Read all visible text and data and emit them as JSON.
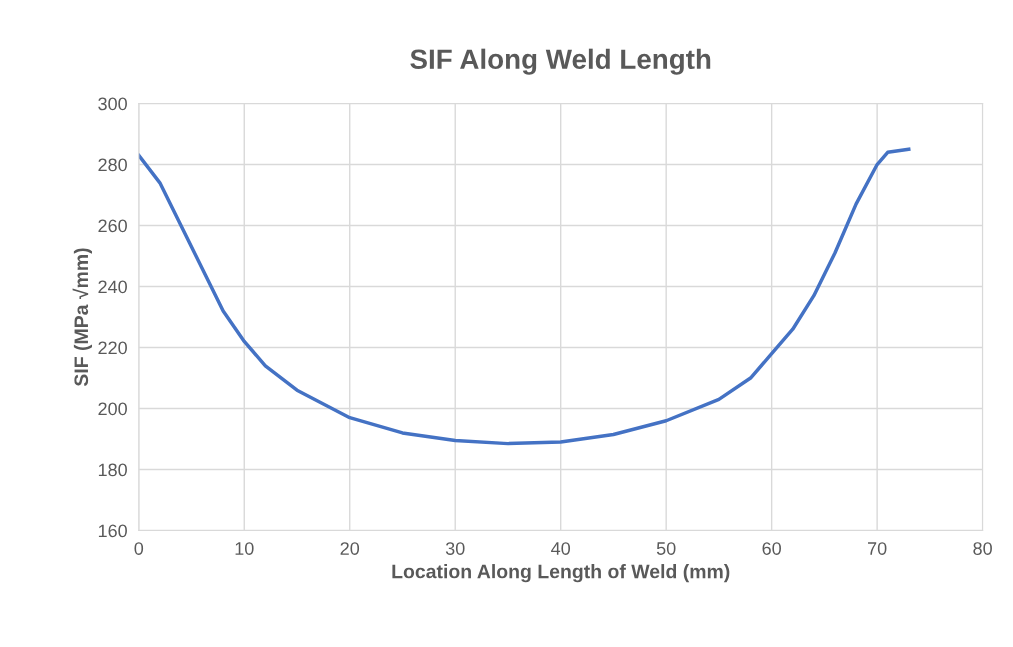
{
  "chart_data": {
    "type": "line",
    "title": "SIF Along Weld Length",
    "xlabel": "Location Along Length of Weld (mm)",
    "ylabel": "SIF (MPa √mm)",
    "x": [
      0,
      2,
      4,
      6,
      8,
      10,
      12,
      15,
      20,
      25,
      30,
      35,
      40,
      45,
      50,
      55,
      58,
      60,
      62,
      64,
      66,
      68,
      70,
      71,
      73
    ],
    "series": [
      {
        "color": "#4472c4",
        "values": [
          283,
          274,
          260,
          246,
          232,
          222,
          214,
          206,
          197,
          192,
          189.5,
          188.5,
          189,
          191.5,
          196,
          203,
          210,
          218,
          226,
          237,
          251,
          267,
          280,
          284,
          285
        ]
      }
    ],
    "xlim": [
      0,
      80
    ],
    "xticks": [
      0,
      10,
      20,
      30,
      40,
      50,
      60,
      70,
      80
    ],
    "ylim": [
      160,
      300
    ],
    "yticks": [
      160,
      180,
      200,
      220,
      240,
      260,
      280,
      300
    ],
    "grid": true,
    "marker": "none",
    "line_style": "solid"
  }
}
